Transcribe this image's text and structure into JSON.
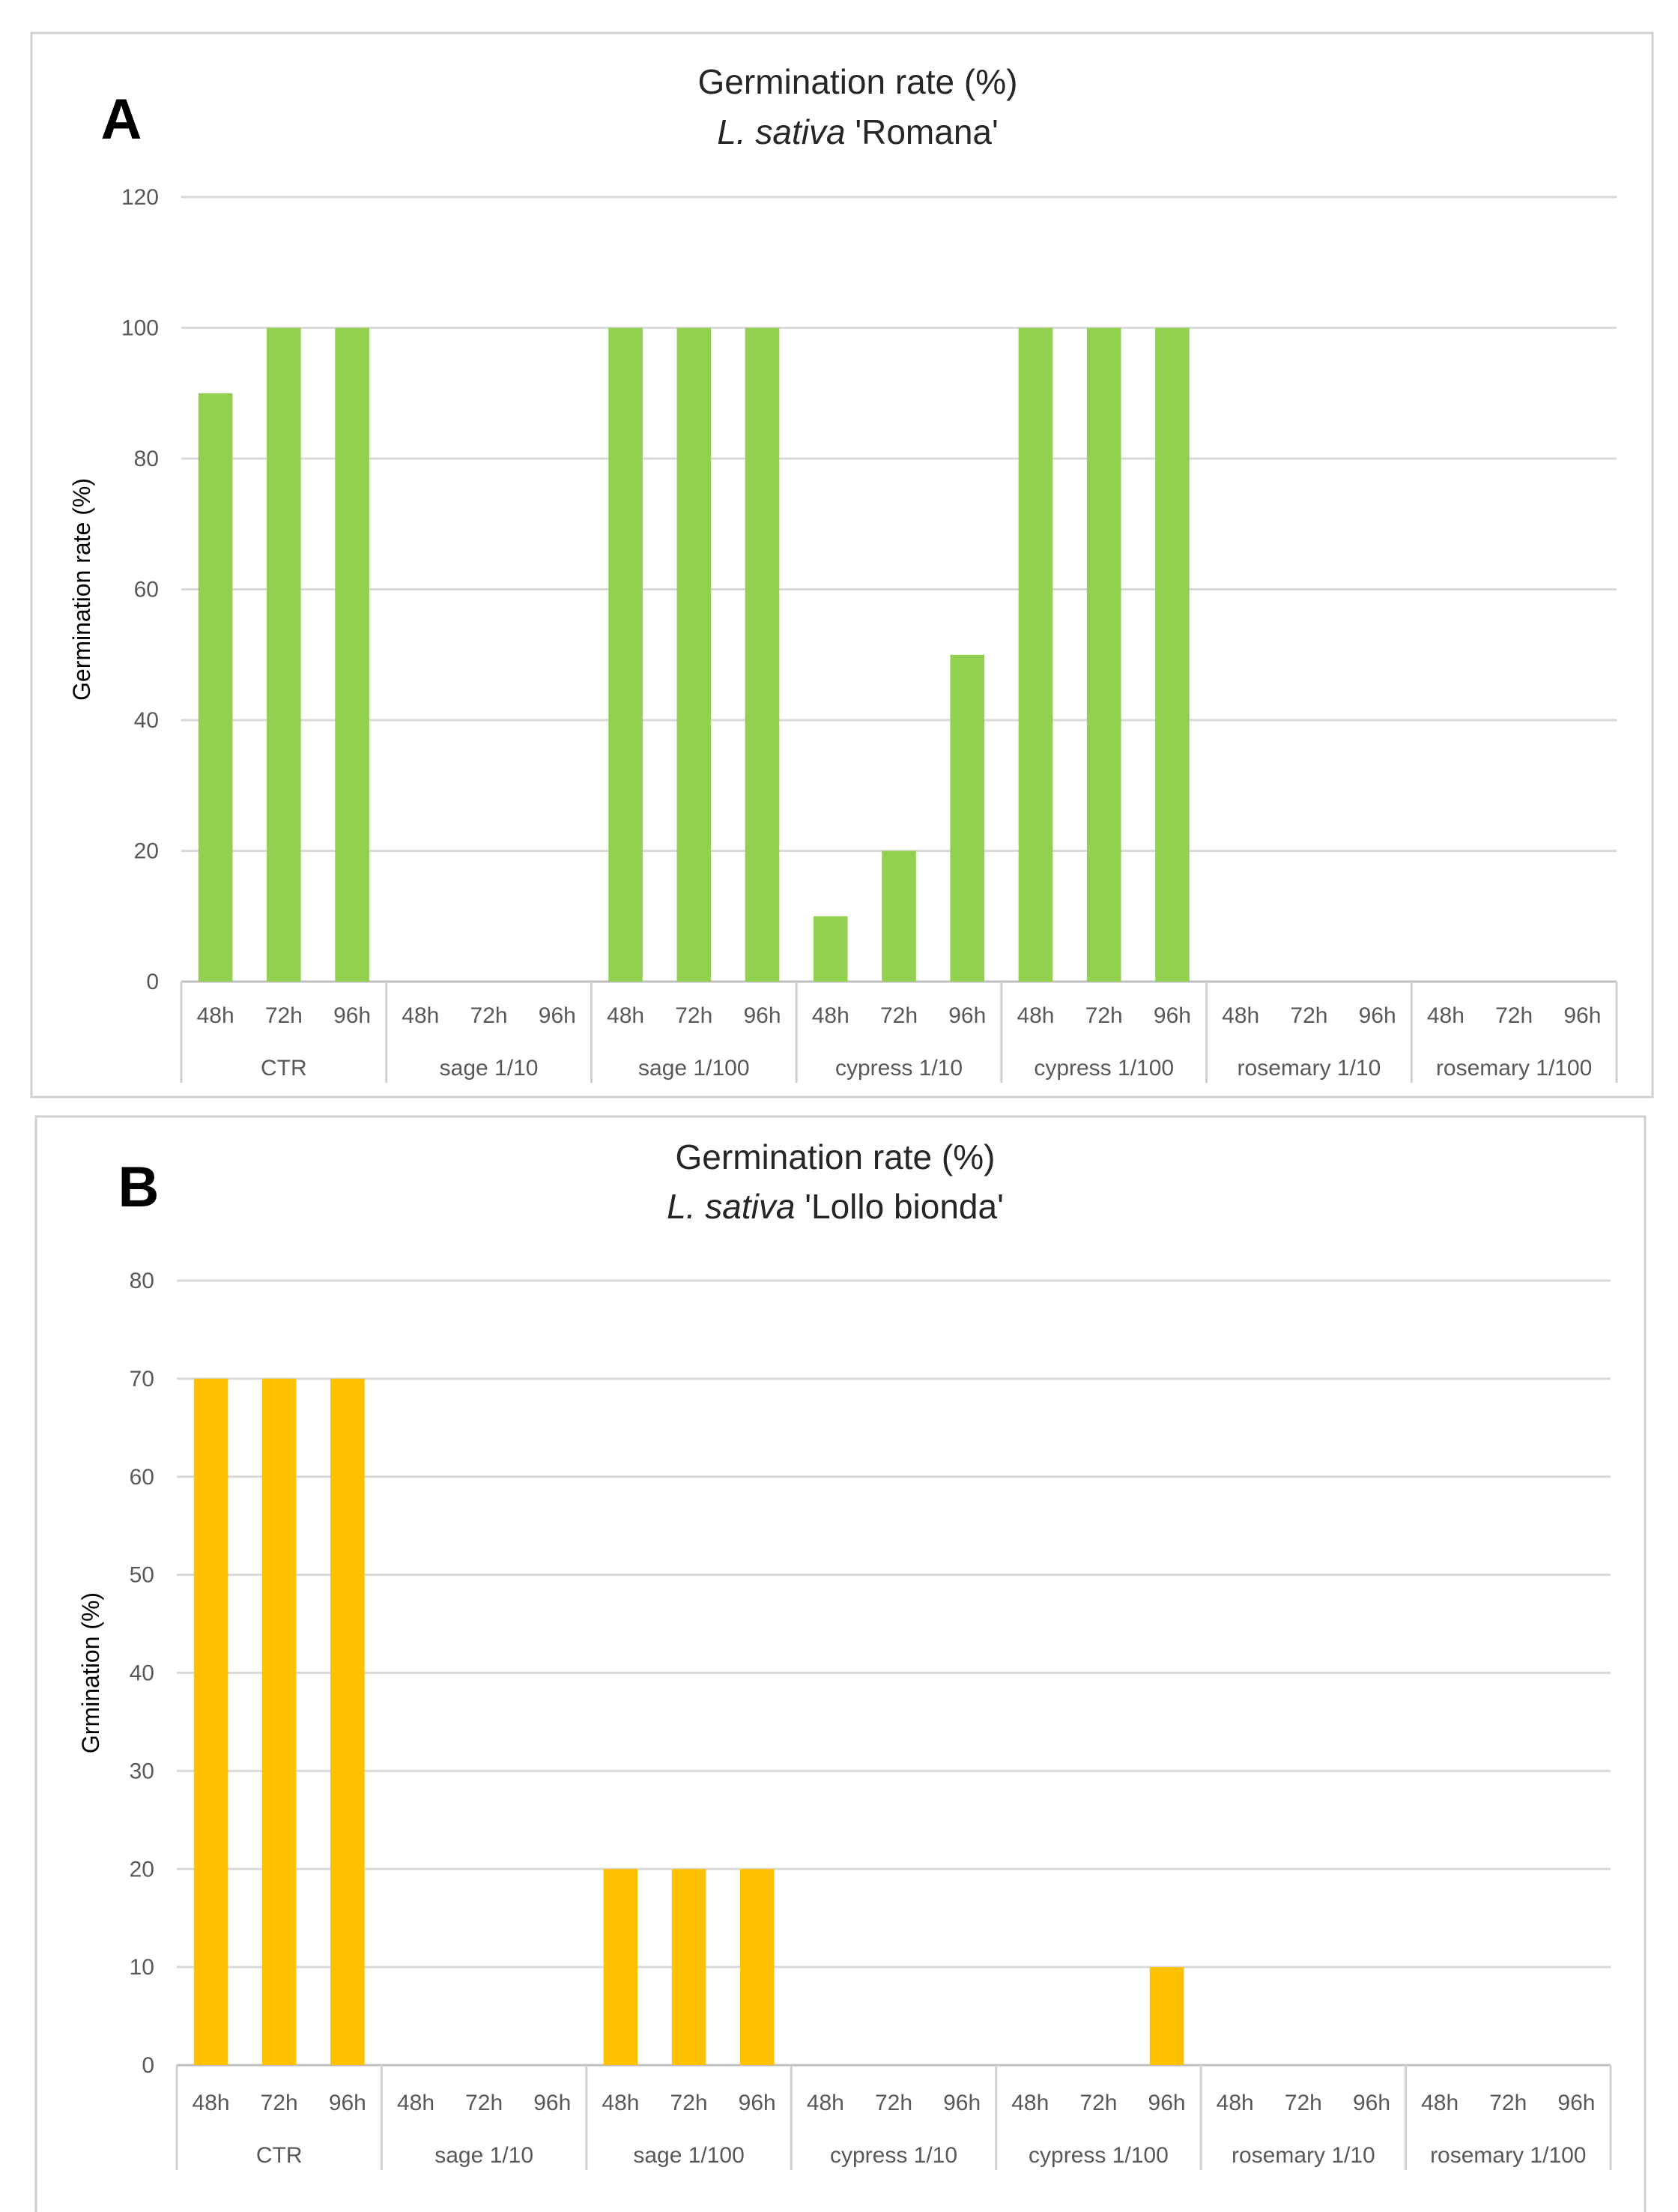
{
  "chart_data": [
    {
      "type": "bar",
      "panel_label": "A",
      "title": "Germination rate (%)",
      "subtitle_species": "L. sativa",
      "subtitle_cultivar": "'Romana'",
      "ylabel": "Germination rate (%)",
      "xlabel": "",
      "ylim": [
        0,
        120
      ],
      "yticks": [
        0,
        20,
        40,
        60,
        80,
        100,
        120
      ],
      "groups": [
        "CTR",
        "sage 1/10",
        "sage 1/100",
        "cypress 1/10",
        "cypress 1/100",
        "rosemary 1/10",
        "rosemary 1/100"
      ],
      "subcategories": [
        "48h",
        "72h",
        "96h"
      ],
      "values": [
        90,
        100,
        100,
        0,
        0,
        0,
        100,
        100,
        100,
        10,
        20,
        50,
        100,
        100,
        100,
        0,
        0,
        0,
        0,
        0,
        0
      ],
      "bar_color": "#92d050",
      "grid": true,
      "legend": "none"
    },
    {
      "type": "bar",
      "panel_label": "B",
      "title": "Germination rate (%)",
      "subtitle_species": "L. sativa",
      "subtitle_cultivar": "'Lollo bionda'",
      "ylabel": "Grmination (%)",
      "xlabel": "",
      "ylim": [
        0,
        80
      ],
      "yticks": [
        0,
        10,
        20,
        30,
        40,
        50,
        60,
        70,
        80
      ],
      "groups": [
        "CTR",
        "sage 1/10",
        "sage 1/100",
        "cypress 1/10",
        "cypress 1/100",
        "rosemary 1/10",
        "rosemary 1/100"
      ],
      "subcategories": [
        "48h",
        "72h",
        "96h"
      ],
      "values": [
        70,
        70,
        70,
        0,
        0,
        0,
        20,
        20,
        20,
        0,
        0,
        0,
        0,
        0,
        10,
        0,
        0,
        0,
        0,
        0,
        0
      ],
      "bar_color": "#ffc000",
      "grid": true,
      "legend": "none"
    }
  ]
}
